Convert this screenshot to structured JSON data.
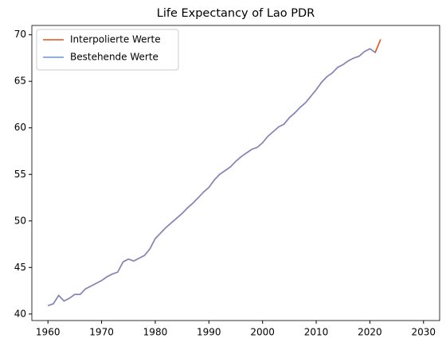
{
  "chart_data": {
    "type": "line",
    "title": "Life Expectancy of Lao PDR",
    "x": [
      1960,
      1961,
      1962,
      1963,
      1964,
      1965,
      1966,
      1967,
      1968,
      1969,
      1970,
      1971,
      1972,
      1973,
      1974,
      1975,
      1976,
      1977,
      1978,
      1979,
      1980,
      1981,
      1982,
      1983,
      1984,
      1985,
      1986,
      1987,
      1988,
      1989,
      1990,
      1991,
      1992,
      1993,
      1994,
      1995,
      1996,
      1997,
      1998,
      1999,
      2000,
      2001,
      2002,
      2003,
      2004,
      2005,
      2006,
      2007,
      2008,
      2009,
      2010,
      2011,
      2012,
      2013,
      2014,
      2015,
      2016,
      2017,
      2018,
      2019,
      2020,
      2021,
      2022
    ],
    "series": [
      {
        "name": "Interpolierte Werte",
        "color": "#e8501a",
        "values": [
          40.9,
          41.1,
          42.0,
          41.4,
          41.7,
          42.1,
          42.1,
          42.7,
          43.0,
          43.3,
          43.6,
          44.0,
          44.3,
          44.5,
          45.6,
          45.9,
          45.7,
          46.0,
          46.3,
          47.0,
          48.1,
          48.7,
          49.3,
          49.8,
          50.3,
          50.8,
          51.4,
          51.9,
          52.5,
          53.1,
          53.6,
          54.4,
          55.0,
          55.4,
          55.8,
          56.4,
          56.9,
          57.3,
          57.7,
          57.9,
          58.4,
          59.1,
          59.6,
          60.1,
          60.4,
          61.1,
          61.6,
          62.2,
          62.7,
          63.4,
          64.1,
          64.9,
          65.5,
          65.9,
          66.5,
          66.8,
          67.2,
          67.5,
          67.7,
          68.2,
          68.5,
          68.1,
          69.5
        ]
      },
      {
        "name": "Bestehende Werte",
        "color": "#6495ed",
        "values": [
          40.9,
          41.1,
          42.0,
          41.4,
          41.7,
          42.1,
          42.1,
          42.7,
          43.0,
          43.3,
          43.6,
          44.0,
          44.3,
          44.5,
          45.6,
          45.9,
          45.7,
          46.0,
          46.3,
          47.0,
          48.1,
          48.7,
          49.3,
          49.8,
          50.3,
          50.8,
          51.4,
          51.9,
          52.5,
          53.1,
          53.6,
          54.4,
          55.0,
          55.4,
          55.8,
          56.4,
          56.9,
          57.3,
          57.7,
          57.9,
          58.4,
          59.1,
          59.6,
          60.1,
          60.4,
          61.1,
          61.6,
          62.2,
          62.7,
          63.4,
          64.1,
          64.9,
          65.5,
          65.9,
          66.5,
          66.8,
          67.2,
          67.5,
          67.7,
          68.2,
          68.5,
          68.1,
          null
        ]
      }
    ],
    "xlim": [
      1957,
      2033
    ],
    "xticks": [
      1960,
      1970,
      1980,
      1990,
      2000,
      2010,
      2020,
      2030
    ],
    "ylim": [
      39.3,
      71.0
    ],
    "yticks": [
      40,
      45,
      50,
      55,
      60,
      65,
      70
    ],
    "legend": "upper left"
  }
}
